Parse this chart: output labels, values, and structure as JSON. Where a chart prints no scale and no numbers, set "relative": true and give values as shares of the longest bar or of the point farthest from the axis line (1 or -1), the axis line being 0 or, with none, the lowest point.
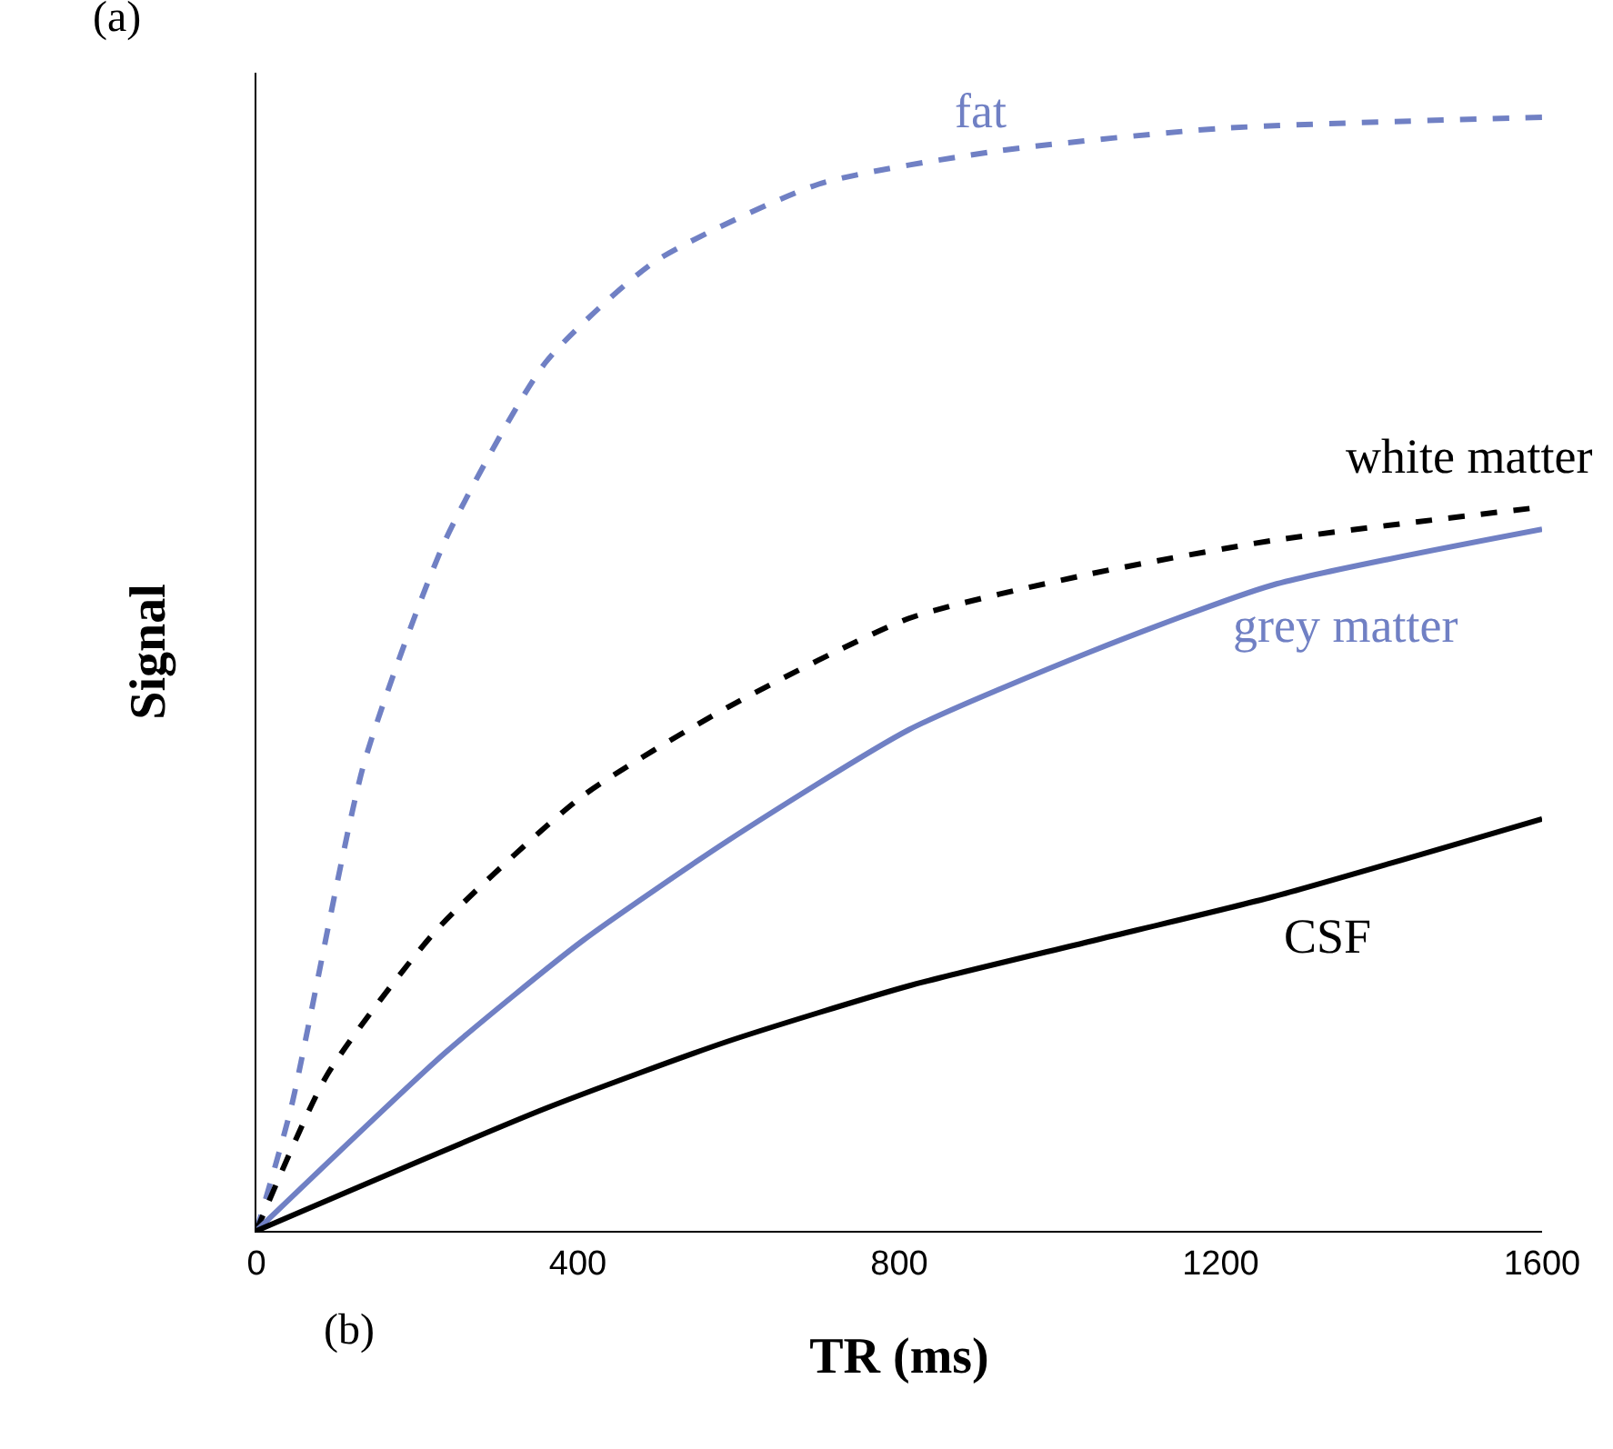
{
  "chart_data": {
    "type": "line",
    "relative": true,
    "xlabel": "TR (ms)",
    "ylabel": "Signal",
    "annotations": [
      "(a)",
      "(b)"
    ],
    "xlim": [
      0,
      1600
    ],
    "xticks": [
      0,
      400,
      800,
      1200,
      1600
    ],
    "grid": false,
    "legend": false,
    "marker": "none",
    "series": [
      {
        "name": "fat",
        "color": "#7080c4",
        "line_style": "dashed",
        "x": [
          0,
          43,
          134,
          235,
          360,
          495,
          700,
          925,
          1200,
          1600
        ],
        "values": [
          0,
          0.11,
          0.42,
          0.62,
          0.78,
          0.87,
          0.94,
          0.97,
          0.99,
          1
        ]
      },
      {
        "name": "white matter",
        "color": "#000000",
        "line_style": "dashed",
        "x": [
          0,
          88,
          224,
          405,
          586,
          812,
          1038,
          1265,
          1600
        ],
        "values": [
          0,
          0.14,
          0.27,
          0.39,
          0.47,
          0.55,
          0.59,
          0.62,
          0.65
        ]
      },
      {
        "name": "grey matter",
        "color": "#7080c4",
        "line_style": "solid",
        "x": [
          0,
          235,
          405,
          586,
          812,
          1038,
          1265,
          1600
        ],
        "values": [
          0,
          0.16,
          0.26,
          0.35,
          0.45,
          0.52,
          0.58,
          0.63
        ]
      },
      {
        "name": "CSF",
        "color": "#000000",
        "line_style": "solid",
        "x": [
          0,
          360,
          586,
          812,
          1038,
          1265,
          1600
        ],
        "values": [
          0,
          0.11,
          0.17,
          0.22,
          0.26,
          0.3,
          0.37
        ]
      }
    ]
  }
}
